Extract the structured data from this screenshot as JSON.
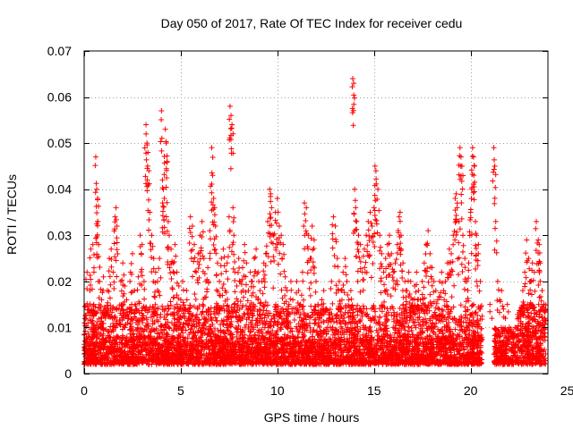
{
  "chart_data": {
    "type": "scatter",
    "title": "Day 050 of 2017, Rate Of TEC Index for receiver cedu",
    "xlabel": "GPS time / hours",
    "ylabel": "ROTI / TECUs",
    "xlim": [
      0,
      24
    ],
    "ylim": [
      0,
      0.07
    ],
    "xticks": [
      0,
      5,
      10,
      15,
      20,
      25
    ],
    "xtick_labels": [
      "0",
      "5",
      "10",
      "15",
      "20",
      "25"
    ],
    "yticks": [
      0,
      0.01,
      0.02,
      0.03,
      0.04,
      0.05,
      0.06,
      0.07
    ],
    "ytick_labels": [
      "0",
      "0.01",
      "0.02",
      "0.03",
      "0.04",
      "0.05",
      "0.06",
      "0.07"
    ],
    "grid": true,
    "marker": "+",
    "color": "#ff0000",
    "series": [
      {
        "points": [
          [
            0.05,
            0.005
          ],
          [
            0.1,
            0.012
          ],
          [
            0.15,
            0.022
          ],
          [
            0.2,
            0.008
          ],
          [
            0.3,
            0.018
          ],
          [
            0.35,
            0.027
          ],
          [
            0.45,
            0.028
          ],
          [
            0.5,
            0.015
          ],
          [
            0.6,
            0.047
          ],
          [
            0.65,
            0.04
          ],
          [
            0.7,
            0.038
          ],
          [
            0.7,
            0.033
          ],
          [
            0.75,
            0.028
          ],
          [
            0.8,
            0.02
          ],
          [
            0.9,
            0.016
          ],
          [
            1.0,
            0.021
          ],
          [
            1.1,
            0.012
          ],
          [
            1.2,
            0.018
          ],
          [
            1.3,
            0.025
          ],
          [
            1.4,
            0.027
          ],
          [
            1.5,
            0.022
          ],
          [
            1.6,
            0.034
          ],
          [
            1.65,
            0.036
          ],
          [
            1.7,
            0.032
          ],
          [
            1.8,
            0.014
          ],
          [
            1.9,
            0.02
          ],
          [
            2.0,
            0.024
          ],
          [
            2.1,
            0.019
          ],
          [
            2.2,
            0.016
          ],
          [
            2.3,
            0.012
          ],
          [
            2.4,
            0.022
          ],
          [
            2.5,
            0.026
          ],
          [
            2.6,
            0.018
          ],
          [
            2.7,
            0.014
          ],
          [
            2.8,
            0.021
          ],
          [
            2.9,
            0.03
          ],
          [
            3.0,
            0.028
          ],
          [
            3.1,
            0.02
          ],
          [
            3.2,
            0.054
          ],
          [
            3.25,
            0.05
          ],
          [
            3.3,
            0.048
          ],
          [
            3.35,
            0.044
          ],
          [
            3.4,
            0.035
          ],
          [
            3.5,
            0.03
          ],
          [
            3.6,
            0.025
          ],
          [
            3.7,
            0.022
          ],
          [
            3.8,
            0.02
          ],
          [
            3.9,
            0.025
          ],
          [
            4.0,
            0.057
          ],
          [
            4.05,
            0.042
          ],
          [
            4.1,
            0.04
          ],
          [
            4.15,
            0.038
          ],
          [
            4.2,
            0.053
          ],
          [
            4.25,
            0.05
          ],
          [
            4.3,
            0.046
          ],
          [
            4.35,
            0.033
          ],
          [
            4.4,
            0.03
          ],
          [
            4.5,
            0.027
          ],
          [
            4.6,
            0.024
          ],
          [
            4.7,
            0.028
          ],
          [
            4.8,
            0.022
          ],
          [
            4.9,
            0.019
          ],
          [
            5.0,
            0.016
          ],
          [
            5.1,
            0.02
          ],
          [
            5.2,
            0.014
          ],
          [
            5.3,
            0.018
          ],
          [
            5.4,
            0.012
          ],
          [
            5.5,
            0.034
          ],
          [
            5.6,
            0.032
          ],
          [
            5.7,
            0.028
          ],
          [
            5.8,
            0.022
          ],
          [
            5.9,
            0.026
          ],
          [
            6.0,
            0.03
          ],
          [
            6.1,
            0.033
          ],
          [
            6.2,
            0.025
          ],
          [
            6.3,
            0.02
          ],
          [
            6.4,
            0.023
          ],
          [
            6.5,
            0.031
          ],
          [
            6.6,
            0.049
          ],
          [
            6.65,
            0.043
          ],
          [
            6.7,
            0.038
          ],
          [
            6.75,
            0.036
          ],
          [
            6.8,
            0.032
          ],
          [
            6.9,
            0.024
          ],
          [
            7.0,
            0.02
          ],
          [
            7.1,
            0.025
          ],
          [
            7.2,
            0.027
          ],
          [
            7.3,
            0.018
          ],
          [
            7.4,
            0.024
          ],
          [
            7.5,
            0.034
          ],
          [
            7.55,
            0.058
          ],
          [
            7.6,
            0.056
          ],
          [
            7.65,
            0.054
          ],
          [
            7.7,
            0.036
          ],
          [
            7.75,
            0.03
          ],
          [
            7.8,
            0.022
          ],
          [
            7.9,
            0.019
          ],
          [
            8.0,
            0.025
          ],
          [
            8.1,
            0.02
          ],
          [
            8.2,
            0.023
          ],
          [
            8.3,
            0.028
          ],
          [
            8.4,
            0.024
          ],
          [
            8.5,
            0.018
          ],
          [
            8.6,
            0.022
          ],
          [
            8.7,
            0.02
          ],
          [
            8.8,
            0.025
          ],
          [
            8.9,
            0.027
          ],
          [
            9.0,
            0.022
          ],
          [
            9.1,
            0.018
          ],
          [
            9.2,
            0.02
          ],
          [
            9.3,
            0.024
          ],
          [
            9.4,
            0.026
          ],
          [
            9.5,
            0.033
          ],
          [
            9.6,
            0.04
          ],
          [
            9.65,
            0.039
          ],
          [
            9.7,
            0.036
          ],
          [
            9.8,
            0.03
          ],
          [
            9.9,
            0.035
          ],
          [
            10.0,
            0.038
          ],
          [
            10.1,
            0.032
          ],
          [
            10.2,
            0.03
          ],
          [
            10.3,
            0.028
          ],
          [
            10.4,
            0.021
          ],
          [
            10.5,
            0.018
          ],
          [
            10.6,
            0.015
          ],
          [
            10.7,
            0.02
          ],
          [
            10.8,
            0.016
          ],
          [
            10.9,
            0.013
          ],
          [
            11.0,
            0.02
          ],
          [
            11.1,
            0.018
          ],
          [
            11.2,
            0.015
          ],
          [
            11.3,
            0.022
          ],
          [
            11.4,
            0.037
          ],
          [
            11.5,
            0.036
          ],
          [
            11.6,
            0.03
          ],
          [
            11.7,
            0.025
          ],
          [
            11.8,
            0.032
          ],
          [
            11.9,
            0.029
          ],
          [
            12.0,
            0.02
          ],
          [
            12.1,
            0.015
          ],
          [
            12.2,
            0.012
          ],
          [
            12.3,
            0.016
          ],
          [
            12.4,
            0.018
          ],
          [
            12.5,
            0.014
          ],
          [
            12.6,
            0.01
          ],
          [
            12.7,
            0.012
          ],
          [
            12.8,
            0.02
          ],
          [
            12.9,
            0.034
          ],
          [
            13.0,
            0.032
          ],
          [
            13.1,
            0.025
          ],
          [
            13.2,
            0.02
          ],
          [
            13.3,
            0.018
          ],
          [
            13.4,
            0.022
          ],
          [
            13.5,
            0.025
          ],
          [
            13.6,
            0.02
          ],
          [
            13.7,
            0.016
          ],
          [
            13.8,
            0.018
          ],
          [
            13.9,
            0.064
          ],
          [
            13.95,
            0.063
          ],
          [
            14.0,
            0.04
          ],
          [
            14.05,
            0.036
          ],
          [
            14.1,
            0.033
          ],
          [
            14.2,
            0.03
          ],
          [
            14.3,
            0.028
          ],
          [
            14.4,
            0.022
          ],
          [
            14.5,
            0.027
          ],
          [
            14.6,
            0.03
          ],
          [
            14.7,
            0.033
          ],
          [
            14.8,
            0.035
          ],
          [
            14.9,
            0.032
          ],
          [
            15.0,
            0.036
          ],
          [
            15.05,
            0.045
          ],
          [
            15.1,
            0.044
          ],
          [
            15.2,
            0.04
          ],
          [
            15.3,
            0.03
          ],
          [
            15.4,
            0.026
          ],
          [
            15.5,
            0.022
          ],
          [
            15.6,
            0.025
          ],
          [
            15.7,
            0.028
          ],
          [
            15.8,
            0.03
          ],
          [
            15.9,
            0.026
          ],
          [
            16.0,
            0.022
          ],
          [
            16.1,
            0.024
          ],
          [
            16.2,
            0.028
          ],
          [
            16.3,
            0.034
          ],
          [
            16.35,
            0.035
          ],
          [
            16.4,
            0.03
          ],
          [
            16.5,
            0.024
          ],
          [
            16.6,
            0.02
          ],
          [
            16.7,
            0.018
          ],
          [
            16.8,
            0.022
          ],
          [
            16.9,
            0.02
          ],
          [
            17.0,
            0.016
          ],
          [
            17.1,
            0.019
          ],
          [
            17.2,
            0.022
          ],
          [
            17.3,
            0.018
          ],
          [
            17.4,
            0.016
          ],
          [
            17.5,
            0.02
          ],
          [
            17.6,
            0.024
          ],
          [
            17.7,
            0.028
          ],
          [
            17.8,
            0.031
          ],
          [
            17.9,
            0.026
          ],
          [
            18.0,
            0.023
          ],
          [
            18.1,
            0.02
          ],
          [
            18.2,
            0.018
          ],
          [
            18.3,
            0.016
          ],
          [
            18.4,
            0.02
          ],
          [
            18.5,
            0.022
          ],
          [
            18.6,
            0.018
          ],
          [
            18.7,
            0.02
          ],
          [
            18.8,
            0.024
          ],
          [
            18.9,
            0.027
          ],
          [
            19.0,
            0.026
          ],
          [
            19.1,
            0.03
          ],
          [
            19.2,
            0.038
          ],
          [
            19.25,
            0.039
          ],
          [
            19.3,
            0.036
          ],
          [
            19.4,
            0.033
          ],
          [
            19.45,
            0.049
          ],
          [
            19.5,
            0.047
          ],
          [
            19.55,
            0.045
          ],
          [
            19.6,
            0.03
          ],
          [
            19.7,
            0.025
          ],
          [
            19.8,
            0.02
          ],
          [
            19.9,
            0.024
          ],
          [
            20.0,
            0.035
          ],
          [
            20.05,
            0.04
          ],
          [
            20.1,
            0.049
          ],
          [
            20.15,
            0.047
          ],
          [
            20.2,
            0.045
          ],
          [
            20.25,
            0.033
          ],
          [
            20.3,
            0.03
          ],
          [
            20.4,
            0.028
          ],
          [
            20.5,
            0.02
          ],
          [
            21.0,
            0.015
          ],
          [
            21.1,
            0.012
          ],
          [
            21.2,
            0.049
          ],
          [
            21.25,
            0.045
          ],
          [
            21.3,
            0.033
          ],
          [
            21.4,
            0.02
          ],
          [
            21.5,
            0.016
          ],
          [
            21.6,
            0.018
          ],
          [
            21.7,
            0.014
          ],
          [
            21.8,
            0.012
          ],
          [
            21.9,
            0.015
          ],
          [
            22.0,
            0.01
          ],
          [
            22.1,
            0.008
          ],
          [
            22.3,
            0.01
          ],
          [
            22.5,
            0.012
          ],
          [
            22.7,
            0.018
          ],
          [
            22.8,
            0.022
          ],
          [
            22.9,
            0.029
          ],
          [
            23.0,
            0.025
          ],
          [
            23.1,
            0.02
          ],
          [
            23.2,
            0.024
          ],
          [
            23.3,
            0.022
          ],
          [
            23.4,
            0.033
          ],
          [
            23.5,
            0.029
          ],
          [
            23.55,
            0.028
          ],
          [
            23.6,
            0.024
          ],
          [
            23.7,
            0.018
          ],
          [
            23.8,
            0.015
          ]
        ],
        "dense_bands": [
          {
            "x_range": [
              0.0,
              20.6
            ],
            "y_range": [
              0.002,
              0.015
            ],
            "count": 3200
          },
          {
            "x_range": [
              0.0,
              20.6
            ],
            "y_range": [
              0.002,
              0.008
            ],
            "count": 1800
          },
          {
            "x_range": [
              21.2,
              22.4
            ],
            "y_range": [
              0.002,
              0.01
            ],
            "count": 260
          },
          {
            "x_range": [
              22.4,
              23.9
            ],
            "y_range": [
              0.002,
              0.015
            ],
            "count": 380
          }
        ]
      }
    ]
  }
}
